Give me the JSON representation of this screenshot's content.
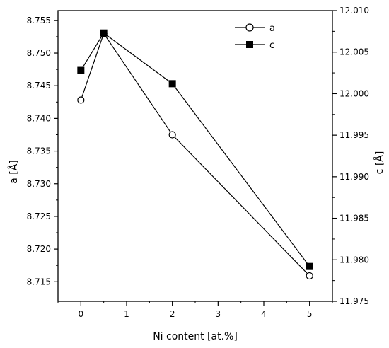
{
  "chart_data": {
    "type": "line",
    "xlabel": "Ni content [at.%]",
    "ylabel_left": "a [Å]",
    "ylabel_right": "c [Å]",
    "xlim": [
      -0.5,
      5.5
    ],
    "ylim_left": [
      8.712,
      8.7565
    ],
    "ylim_right": [
      11.975,
      12.01
    ],
    "x_ticks": [
      0,
      1,
      2,
      3,
      4,
      5
    ],
    "y_left_ticks": [
      "8.715",
      "8.720",
      "8.725",
      "8.730",
      "8.735",
      "8.740",
      "8.745",
      "8.750",
      "8.755"
    ],
    "y_right_ticks": [
      "11.975",
      "11.980",
      "11.985",
      "11.990",
      "11.995",
      "12.000",
      "12.005",
      "12.010"
    ],
    "legend_position": "top-right",
    "grid": false,
    "series": [
      {
        "name": "a",
        "axis": "left",
        "marker": "open-circle",
        "x": [
          0,
          0.5,
          2,
          5
        ],
        "y": [
          8.7428,
          8.753,
          8.7375,
          8.7159
        ]
      },
      {
        "name": "c",
        "axis": "right",
        "marker": "filled-square",
        "x": [
          0,
          0.5,
          2,
          5
        ],
        "y": [
          12.0028,
          12.0073,
          12.0012,
          11.9792
        ]
      }
    ]
  }
}
